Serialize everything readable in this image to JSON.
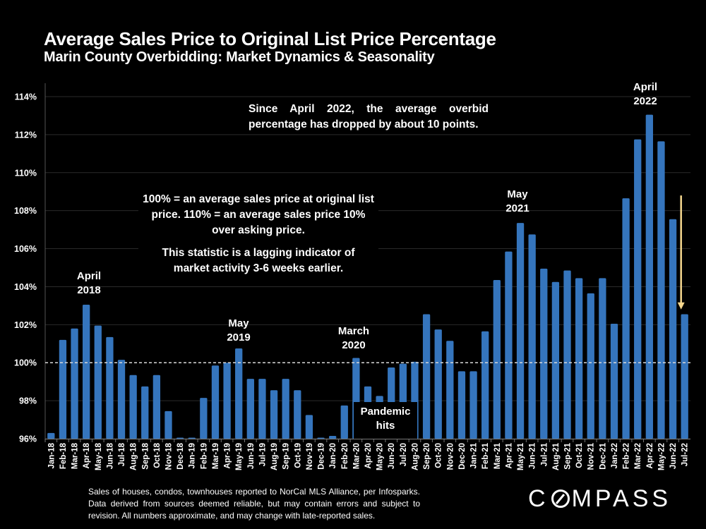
{
  "header": {
    "title": "Average Sales Price to Original List Price Percentage",
    "subtitle": "Marin County Overbidding: Market Dynamics & Seasonality"
  },
  "chart_data": {
    "type": "bar",
    "title": "Average Sales Price to Original List Price Percentage",
    "subtitle": "Marin County Overbidding: Market Dynamics & Seasonality",
    "xlabel": "",
    "ylabel": "",
    "ylim": [
      96,
      114
    ],
    "yticks": [
      96,
      98,
      100,
      102,
      104,
      106,
      108,
      110,
      112,
      114
    ],
    "ytick_labels": [
      "96%",
      "98%",
      "100%",
      "102%",
      "104%",
      "106%",
      "108%",
      "110%",
      "112%",
      "114%"
    ],
    "grid": true,
    "reference_line": {
      "value": 100,
      "style": "dashed"
    },
    "bar_color": "#3575BD",
    "categories": [
      "Jan-18",
      "Feb-18",
      "Mar-18",
      "Apr-18",
      "May-18",
      "Jun-18",
      "Jul-18",
      "Aug-18",
      "Sep-18",
      "Oct-18",
      "Nov-18",
      "Dec-18",
      "Jan-19",
      "Feb-19",
      "Mar-19",
      "Apr-19",
      "May-19",
      "Jun-19",
      "Jul-19",
      "Aug-19",
      "Sep-19",
      "Oct-19",
      "Nov-19",
      "Dec-19",
      "Jan-20",
      "Feb-20",
      "Mar-20",
      "Apr-20",
      "May-20",
      "Jun-20",
      "Jul-20",
      "Aug-20",
      "Sep-20",
      "Oct-20",
      "Nov-20",
      "Dec-20",
      "Jan-21",
      "Feb-21",
      "Mar-21",
      "Apr-21",
      "May-21",
      "Jun-21",
      "Jul-21",
      "Aug-21",
      "Sep-21",
      "Oct-21",
      "Nov-21",
      "Dec-21",
      "Jan-22",
      "Feb-22",
      "Mar-22",
      "Apr-22",
      "May-22",
      "Jun-22",
      "Jul-22"
    ],
    "values": [
      96.3,
      101.2,
      101.8,
      103.05,
      101.95,
      101.35,
      100.15,
      99.35,
      98.75,
      99.35,
      97.45,
      96.05,
      96.05,
      98.15,
      99.85,
      100.0,
      100.75,
      99.15,
      99.15,
      98.55,
      99.15,
      98.55,
      97.25,
      96.05,
      96.15,
      97.75,
      100.25,
      98.75,
      98.25,
      99.75,
      99.95,
      100.05,
      102.55,
      101.75,
      101.15,
      99.55,
      99.55,
      101.65,
      104.35,
      105.85,
      107.35,
      106.75,
      104.95,
      104.25,
      104.85,
      104.45,
      103.65,
      104.45,
      102.05,
      108.65,
      111.75,
      113.05,
      111.65,
      107.55,
      102.55
    ],
    "annotations": [
      {
        "text": "April\n2018",
        "category": "Apr-18"
      },
      {
        "text": "May\n2019",
        "category": "May-19"
      },
      {
        "text": "March\n2020",
        "category": "Mar-20"
      },
      {
        "text": "May\n2021",
        "category": "May-21"
      },
      {
        "text": "April\n2022",
        "category": "Apr-22"
      },
      {
        "text": "Pandemic\nhits",
        "category": "May-20"
      }
    ],
    "arrow": {
      "from_value": 108.8,
      "to_value": 102.8,
      "category": "Jul-22",
      "color": "#F5D78E"
    }
  },
  "annotations": {
    "april_2018": [
      "April",
      "2018"
    ],
    "may_2019": [
      "May",
      "2019"
    ],
    "march_2020": [
      "March",
      "2020"
    ],
    "may_2021": [
      "May",
      "2021"
    ],
    "april_2022": [
      "April",
      "2022"
    ],
    "pandemic": [
      "Pandemic",
      "hits"
    ],
    "since_april": "Since April 2022, the average overbid percentage has dropped by about 10 points.",
    "explain_1": "100% = an average sales price at original list price. 110% = an average sales price 10% over asking price.",
    "explain_2": "This statistic is a lagging indicator of market activity 3-6 weeks earlier."
  },
  "footer": {
    "note": "Sales of houses, condos, townhouses reported to NorCal MLS Alliance, per Infosparks. Data derived from sources deemed reliable, but may contain errors and subject to revision. All numbers approximate, and may change with late-reported sales.",
    "logo_pre": "C",
    "logo_post": "MPASS"
  }
}
